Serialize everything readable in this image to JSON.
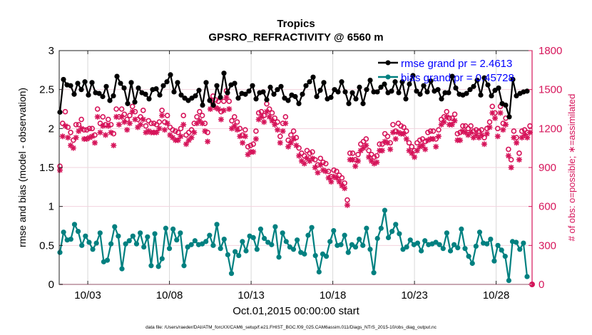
{
  "chart_data": {
    "type": "line",
    "title": "Tropics",
    "subtitle": "GPSRO_REFRACTIVITY @ 6560 m",
    "xlabel": "Oct.01,2015 00:00:00 start",
    "ylabel": "rmse and bias (model - observation)",
    "y2label": "# of obs: o=possible; ∗=assimilated",
    "footnote": "data file: /Users/raeder/DAI/ATM_forcXX/CAM6_setup/f.e21.FHIST_BGC.f09_025.CAM6assim.011/Diags_NTrS_2015-10/obs_diag_output.nc",
    "xlim_days": [
      1.25,
      30.2
    ],
    "x_ticks": [
      {
        "day": 3,
        "label": "10/03"
      },
      {
        "day": 8,
        "label": "10/08"
      },
      {
        "day": 13,
        "label": "10/13"
      },
      {
        "day": 18,
        "label": "10/18"
      },
      {
        "day": 23,
        "label": "10/23"
      },
      {
        "day": 28,
        "label": "10/28"
      }
    ],
    "ylim": [
      0,
      3
    ],
    "y_ticks": [
      "0",
      "0.5",
      "1",
      "1.5",
      "2",
      "2.5",
      "3"
    ],
    "y2lim": [
      0,
      1800
    ],
    "y2_ticks": [
      "0",
      "300",
      "600",
      "900",
      "1200",
      "1500",
      "1800"
    ],
    "grid": true,
    "legend": {
      "position": "top-right",
      "entries": [
        "rmse grand pr = 2.4613",
        "bias grand pr = 0.45728"
      ]
    },
    "colors": {
      "rmse": "#000000",
      "bias": "#008080",
      "obs": "#d6145a",
      "legend_text": "#0000ff"
    },
    "series": [
      {
        "name": "rmse",
        "axis": "left",
        "values": [
          2.21,
          2.63,
          2.56,
          2.55,
          2.44,
          2.58,
          2.5,
          2.6,
          2.43,
          2.59,
          2.46,
          2.45,
          2.41,
          2.54,
          2.36,
          2.42,
          2.67,
          2.58,
          2.52,
          2.32,
          2.59,
          2.34,
          2.52,
          2.46,
          2.44,
          2.38,
          2.5,
          2.51,
          2.43,
          2.55,
          2.6,
          2.69,
          2.47,
          2.59,
          2.43,
          2.39,
          2.36,
          2.39,
          2.42,
          2.49,
          2.3,
          2.59,
          2.36,
          2.3,
          2.55,
          2.4,
          2.71,
          2.46,
          2.56,
          2.58,
          2.39,
          2.45,
          2.44,
          2.48,
          2.55,
          2.38,
          2.46,
          2.47,
          2.37,
          2.53,
          2.44,
          2.5,
          2.54,
          2.39,
          2.36,
          2.43,
          2.41,
          2.32,
          2.44,
          2.55,
          2.6,
          2.66,
          2.41,
          2.49,
          2.59,
          2.38,
          2.4,
          2.5,
          2.47,
          2.6,
          2.47,
          2.32,
          2.46,
          2.38,
          2.53,
          2.32,
          2.5,
          2.62,
          2.47,
          2.47,
          2.53,
          2.57,
          2.46,
          2.48,
          2.6,
          2.46,
          2.6,
          2.38,
          2.57,
          2.68,
          2.48,
          2.44,
          2.55,
          2.47,
          2.61,
          2.48,
          2.5,
          2.38,
          2.46,
          2.46,
          2.67,
          2.52,
          2.44,
          2.43,
          2.45,
          2.5,
          2.54,
          2.62,
          2.43,
          2.65,
          2.56,
          2.42,
          2.49,
          2.52,
          2.32,
          2.3,
          2.15,
          2.63,
          2.42,
          2.45,
          2.47,
          2.48
        ]
      },
      {
        "name": "bias",
        "axis": "left",
        "values": [
          0.41,
          0.67,
          0.57,
          0.58,
          0.77,
          0.68,
          0.5,
          0.62,
          0.54,
          0.45,
          0.53,
          0.66,
          0.29,
          0.31,
          0.52,
          0.74,
          0.62,
          0.2,
          0.52,
          0.56,
          0.62,
          0.52,
          0.66,
          0.48,
          0.61,
          0.24,
          0.65,
          0.23,
          0.33,
          0.72,
          0.46,
          0.71,
          0.57,
          0.66,
          0.24,
          0.48,
          0.51,
          0.56,
          0.51,
          0.52,
          0.55,
          0.63,
          0.5,
          0.77,
          0.46,
          0.58,
          0.38,
          0.14,
          0.42,
          0.37,
          0.55,
          0.43,
          0.62,
          0.6,
          0.45,
          0.71,
          0.59,
          0.54,
          0.51,
          0.74,
          0.35,
          0.66,
          0.55,
          0.48,
          0.45,
          0.57,
          0.41,
          0.39,
          0.63,
          0.73,
          0.37,
          0.16,
          0.39,
          0.36,
          0.55,
          0.69,
          0.5,
          0.51,
          0.63,
          0.41,
          0.51,
          0.48,
          0.58,
          0.5,
          0.72,
          0.45,
          0.15,
          0.59,
          0.72,
          0.95,
          0.6,
          0.68,
          0.77,
          0.65,
          0.45,
          0.48,
          0.57,
          0.51,
          0.53,
          0.43,
          0.56,
          0.51,
          0.52,
          0.54,
          0.51,
          0.46,
          0.66,
          0.43,
          0.51,
          0.47,
          0.71,
          0.46,
          0.36,
          0.27,
          0.49,
          0.67,
          0.53,
          0.52,
          0.58,
          0.3,
          0.5,
          0.44,
          0.36,
          0.05,
          0.55,
          0.54,
          0.45,
          0.53,
          0.1
        ]
      },
      {
        "name": "obs_possible",
        "axis": "right",
        "values": [
          910,
          1240,
          1330,
          1210,
          1170,
          1110,
          1230,
          1230,
          1270,
          1190,
          1190,
          1200,
          1200,
          1150,
          1350,
          1240,
          1290,
          1230,
          1270,
          1230,
          1160,
          1350,
          1290,
          1350,
          1310,
          1270,
          1300,
          1370,
          1330,
          1270,
          1290,
          1340,
          1220,
          1260,
          1240,
          1240,
          1230,
          1250,
          1340,
          1250,
          1300,
          1210,
          1190,
          1180,
          1170,
          1200,
          1300,
          1150,
          1170,
          1190,
          1240,
          1290,
          1330,
          1300,
          1240,
          1170,
          1420,
          1450,
          1420,
          1410,
          1330,
          1410,
          1490,
          1410,
          1260,
          1290,
          1250,
          1200,
          1150,
          1190,
          1060,
          1070,
          1080,
          1180,
          1320,
          1330,
          1300,
          1390,
          1350,
          1320,
          1280,
          1250,
          1140,
          1240,
          1290,
          1110,
          1150,
          1180,
          1130,
          1050,
          1010,
          990,
          1030,
          1010,
          1020,
          960,
          920,
          970,
          940,
          930,
          870,
          830,
          880,
          870,
          840,
          820,
          780,
          650,
          1010,
          1010,
          960,
          1000,
          1080,
          1100,
          1120,
          1030,
          1000,
          980,
          990,
          1080,
          1080,
          1160,
          1140,
          1090,
          1230,
          1180,
          1240,
          1220,
          1210,
          1180,
          1090,
          1060,
          1030,
          1090,
          1110,
          1120,
          1100,
          1170,
          1180,
          1180,
          1120,
          1190,
          1270,
          1290,
          1330,
          1280,
          1280,
          1310,
          1160,
          1170,
          1220,
          1220,
          1200,
          1220,
          1180,
          1190,
          1180,
          1190,
          1130,
          1200,
          1250,
          1370,
          1320,
          1200,
          1370,
          1240,
          1280,
          1040,
          960,
          1180,
          1130,
          1010,
          1180,
          1190,
          1170,
          1220
        ]
      },
      {
        "name": "obs_assimilated",
        "axis": "right",
        "values": [
          880,
          1140,
          1220,
          1130,
          1070,
          1050,
          1130,
          1180,
          1200,
          1120,
          1120,
          1130,
          1140,
          1090,
          1290,
          1170,
          1220,
          1150,
          1220,
          1170,
          1070,
          1290,
          1230,
          1290,
          1250,
          1190,
          1240,
          1330,
          1270,
          1210,
          1230,
          1270,
          1170,
          1180,
          1170,
          1170,
          1170,
          1200,
          1300,
          1190,
          1240,
          1150,
          1130,
          1110,
          1110,
          1140,
          1230,
          1080,
          1110,
          1130,
          1170,
          1240,
          1260,
          1240,
          1180,
          1100,
          1350,
          1390,
          1360,
          1350,
          1270,
          1340,
          1440,
          1350,
          1200,
          1220,
          1190,
          1140,
          1090,
          1140,
          1000,
          1020,
          1020,
          1120,
          1270,
          1290,
          1250,
          1330,
          1290,
          1260,
          1230,
          1190,
          1090,
          1180,
          1240,
          1060,
          1090,
          1120,
          1070,
          990,
          950,
          930,
          970,
          950,
          970,
          900,
          860,
          920,
          880,
          870,
          820,
          790,
          830,
          820,
          790,
          760,
          740,
          610,
          960,
          960,
          910,
          950,
          1030,
          1050,
          1070,
          980,
          950,
          930,
          940,
          1030,
          1030,
          1100,
          1090,
          1040,
          1170,
          1120,
          1170,
          1160,
          1160,
          1120,
          1030,
          1010,
          980,
          1030,
          1060,
          1070,
          1040,
          1110,
          1120,
          1120,
          1060,
          1140,
          1230,
          1250,
          1290,
          1230,
          1230,
          1260,
          1110,
          1110,
          1180,
          1170,
          1150,
          1170,
          1130,
          1150,
          1130,
          1150,
          1080,
          1160,
          1210,
          1320,
          1280,
          1140,
          1320,
          1190,
          1230,
          990,
          900,
          1130,
          1090,
          960,
          1130,
          1150,
          1130,
          1170
        ]
      }
    ]
  }
}
